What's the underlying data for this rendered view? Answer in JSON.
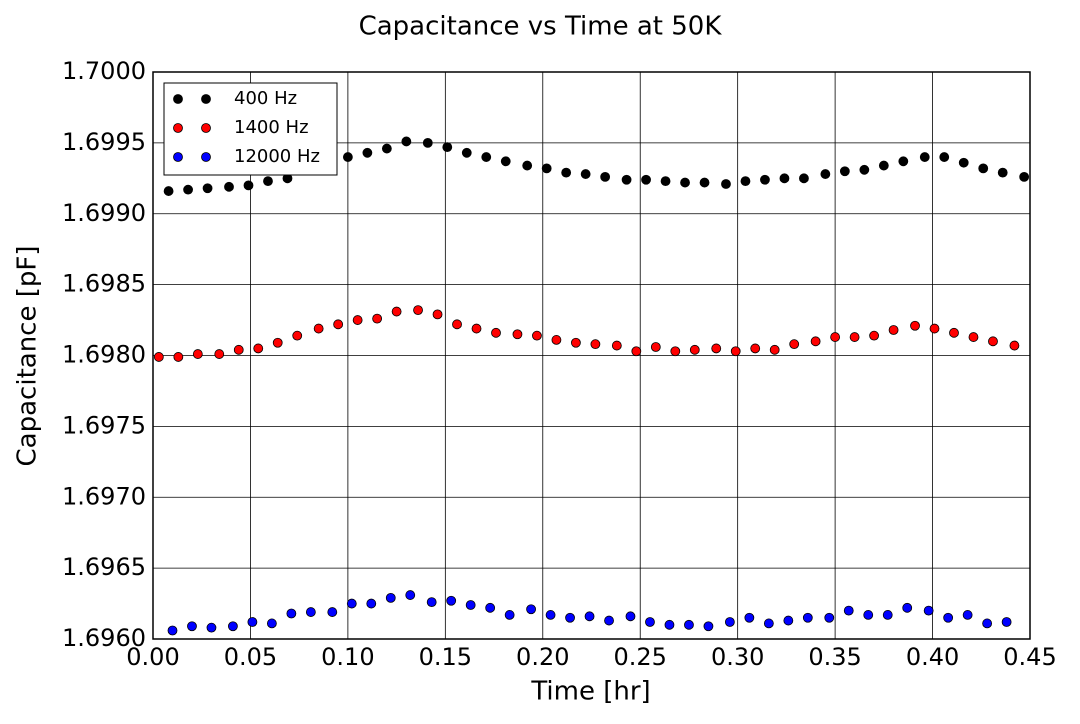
{
  "chart_data": {
    "type": "scatter",
    "title": "Capacitance vs Time at 50K",
    "x_label": "Time [hr]",
    "y_label": "Capacitance [pF]",
    "xlim": [
      0,
      0.45
    ],
    "ylim": [
      1.696,
      1.7
    ],
    "xticks": [
      {
        "value": 0,
        "label": "0.00"
      },
      0.05,
      {
        "value": 0.1,
        "label": "0.10"
      },
      0.15,
      {
        "value": 0.2,
        "label": "0.20"
      },
      0.25,
      {
        "value": 0.3,
        "label": "0.30"
      },
      0.35,
      {
        "value": 0.4,
        "label": "0.40"
      },
      0.45
    ],
    "yticks": [
      {
        "value": 1.696,
        "label": "1.6960"
      },
      1.6965,
      {
        "value": 1.697,
        "label": "1.6970"
      },
      1.6975,
      {
        "value": 1.698,
        "label": "1.6980"
      },
      1.6985,
      {
        "value": 1.699,
        "label": "1.6990"
      },
      1.6995,
      {
        "value": 1.7,
        "label": "1.7000"
      }
    ],
    "grid": true,
    "legend": "upper-left",
    "series": [
      {
        "name": "400 Hz",
        "color": "#000000",
        "x": [
          0.008,
          0.018,
          0.028,
          0.039,
          0.049,
          0.059,
          0.069,
          0.079,
          0.09,
          0.1,
          0.11,
          0.12,
          0.13,
          0.141,
          0.151,
          0.161,
          0.171,
          0.181,
          0.192,
          0.202,
          0.212,
          0.222,
          0.232,
          0.243,
          0.253,
          0.263,
          0.273,
          0.283,
          0.294,
          0.304,
          0.314,
          0.324,
          0.334,
          0.345,
          0.355,
          0.365,
          0.375,
          0.385,
          0.396,
          0.406,
          0.416,
          0.426,
          0.436,
          0.447
        ],
        "values": [
          1.69916,
          1.69917,
          1.69918,
          1.69919,
          1.6992,
          1.69923,
          1.69925,
          1.69931,
          1.69935,
          1.6994,
          1.69943,
          1.69946,
          1.69951,
          1.6995,
          1.69947,
          1.69943,
          1.6994,
          1.69937,
          1.69934,
          1.69932,
          1.69929,
          1.69928,
          1.69926,
          1.69924,
          1.69924,
          1.69923,
          1.69922,
          1.69922,
          1.69921,
          1.69923,
          1.69924,
          1.69925,
          1.69925,
          1.69928,
          1.6993,
          1.69931,
          1.69934,
          1.69937,
          1.6994,
          1.6994,
          1.69936,
          1.69932,
          1.69929,
          1.69926
        ]
      },
      {
        "name": "1400 Hz",
        "color": "#ff0000",
        "x": [
          0.003,
          0.013,
          0.023,
          0.034,
          0.044,
          0.054,
          0.064,
          0.074,
          0.085,
          0.095,
          0.105,
          0.115,
          0.125,
          0.136,
          0.146,
          0.156,
          0.166,
          0.176,
          0.187,
          0.197,
          0.207,
          0.217,
          0.227,
          0.238,
          0.248,
          0.258,
          0.268,
          0.278,
          0.289,
          0.299,
          0.309,
          0.319,
          0.329,
          0.34,
          0.35,
          0.36,
          0.37,
          0.38,
          0.391,
          0.401,
          0.411,
          0.421,
          0.431,
          0.442
        ],
        "values": [
          1.69799,
          1.69799,
          1.69801,
          1.69801,
          1.69804,
          1.69805,
          1.69809,
          1.69814,
          1.69819,
          1.69822,
          1.69825,
          1.69826,
          1.69831,
          1.69832,
          1.69829,
          1.69822,
          1.69819,
          1.69816,
          1.69815,
          1.69814,
          1.69811,
          1.69809,
          1.69808,
          1.69807,
          1.69803,
          1.69806,
          1.69803,
          1.69804,
          1.69805,
          1.69803,
          1.69805,
          1.69804,
          1.69808,
          1.6981,
          1.69813,
          1.69813,
          1.69814,
          1.69818,
          1.69821,
          1.69819,
          1.69816,
          1.69813,
          1.6981,
          1.69807
        ]
      },
      {
        "name": "12000 Hz",
        "color": "#0000ff",
        "x": [
          0.01,
          0.02,
          0.03,
          0.041,
          0.051,
          0.061,
          0.071,
          0.081,
          0.092,
          0.102,
          0.112,
          0.122,
          0.132,
          0.143,
          0.153,
          0.163,
          0.173,
          0.183,
          0.194,
          0.204,
          0.214,
          0.224,
          0.234,
          0.245,
          0.255,
          0.265,
          0.275,
          0.285,
          0.296,
          0.306,
          0.316,
          0.326,
          0.336,
          0.347,
          0.357,
          0.367,
          0.377,
          0.387,
          0.398,
          0.408,
          0.418,
          0.428,
          0.438
        ],
        "values": [
          1.69606,
          1.69609,
          1.69608,
          1.69609,
          1.69612,
          1.69611,
          1.69618,
          1.69619,
          1.69619,
          1.69625,
          1.69625,
          1.69629,
          1.69631,
          1.69626,
          1.69627,
          1.69624,
          1.69622,
          1.69617,
          1.69621,
          1.69617,
          1.69615,
          1.69616,
          1.69613,
          1.69616,
          1.69612,
          1.6961,
          1.6961,
          1.69609,
          1.69612,
          1.69615,
          1.69611,
          1.69613,
          1.69615,
          1.69615,
          1.6962,
          1.69617,
          1.69617,
          1.69622,
          1.6962,
          1.69615,
          1.69617,
          1.69611,
          1.69612
        ]
      }
    ]
  }
}
